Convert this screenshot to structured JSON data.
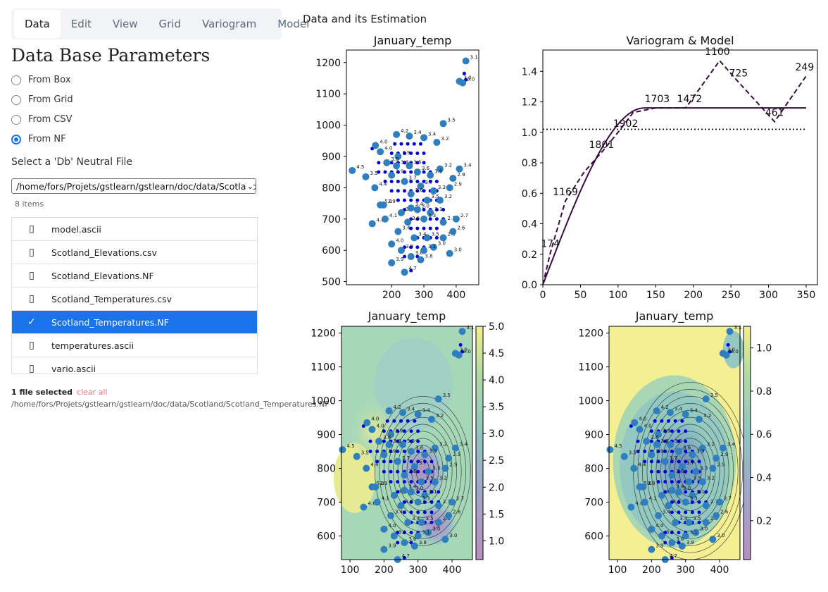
{
  "tabs": [
    "Data",
    "Edit",
    "View",
    "Grid",
    "Variogram",
    "Model"
  ],
  "active_tab": "Data",
  "section_title": "Data Base Parameters",
  "radios": [
    {
      "label": "From Box",
      "checked": false
    },
    {
      "label": "From Grid",
      "checked": false
    },
    {
      "label": "From CSV",
      "checked": false
    },
    {
      "label": "From NF",
      "checked": true
    }
  ],
  "nf_label": "Select a 'Db' Neutral File",
  "select_value": "/home/fors/Projets/gstlearn/gstlearn/doc/data/Scotland",
  "item_count": "8 items",
  "files": [
    {
      "name": "model.ascii",
      "icon": "file-icon",
      "selected": false
    },
    {
      "name": "Scotland_Elevations.csv",
      "icon": "spreadsheet-icon",
      "selected": false
    },
    {
      "name": "Scotland_Elevations.NF",
      "icon": "file-icon",
      "selected": false
    },
    {
      "name": "Scotland_Temperatures.csv",
      "icon": "spreadsheet-icon",
      "selected": false
    },
    {
      "name": "Scotland_Temperatures.NF",
      "icon": "check-icon",
      "selected": true
    },
    {
      "name": "temperatures.ascii",
      "icon": "file-icon",
      "selected": false
    },
    {
      "name": "vario.ascii",
      "icon": "file-icon",
      "selected": false
    }
  ],
  "selection_text": "1 file selected",
  "clear_label": "clear all",
  "selected_path": "/home/fors/Projets/gstlearn/gstlearn/doc/data/Scotland/Scotland_Temperatures.NF",
  "figure_title": "Data and its Estimation",
  "accent": "#1a73e8",
  "chart_data": [
    {
      "type": "scatter",
      "title": "January_temp",
      "xticks": [
        200,
        300,
        400
      ],
      "yticks": [
        500,
        600,
        700,
        800,
        900,
        1000,
        1100,
        1200
      ],
      "xlim": [
        60,
        470
      ],
      "ylim": [
        490,
        1240
      ],
      "points": [
        [
          78,
          855,
          4.5
        ],
        [
          120,
          835,
          3.5
        ],
        [
          148,
          800,
          4.4
        ],
        [
          165,
          745,
          5.0
        ],
        [
          140,
          685,
          4.6
        ],
        [
          175,
          745,
          3.9
        ],
        [
          165,
          915,
          4.0
        ],
        [
          150,
          935,
          4.0
        ],
        [
          220,
          900,
          3.9
        ],
        [
          215,
          970,
          4.2
        ],
        [
          255,
          965,
          3.4
        ],
        [
          300,
          960,
          3.4
        ],
        [
          340,
          945,
          3.2
        ],
        [
          360,
          1005,
          3.5
        ],
        [
          255,
          870,
          3.5
        ],
        [
          200,
          840,
          3.9
        ],
        [
          240,
          820,
          3.7
        ],
        [
          290,
          805,
          3.7
        ],
        [
          260,
          780,
          3.6
        ],
        [
          310,
          760,
          3.5
        ],
        [
          350,
          760,
          3.2
        ],
        [
          280,
          730,
          3.0
        ],
        [
          320,
          720,
          3.1
        ],
        [
          360,
          690,
          2.7
        ],
        [
          300,
          700,
          3.3
        ],
        [
          250,
          690,
          3.6
        ],
        [
          220,
          660,
          3.4
        ],
        [
          200,
          620,
          4.0
        ],
        [
          230,
          600,
          3.9
        ],
        [
          260,
          580,
          3.6
        ],
        [
          290,
          570,
          3.8
        ],
        [
          330,
          610,
          3.0
        ],
        [
          360,
          640,
          2.8
        ],
        [
          390,
          660,
          2.6
        ],
        [
          400,
          700,
          2.7
        ],
        [
          380,
          590,
          3.0
        ],
        [
          240,
          530,
          4.7
        ],
        [
          310,
          640,
          3.5
        ],
        [
          270,
          640,
          3.4
        ],
        [
          180,
          700,
          4.1
        ],
        [
          380,
          800,
          2.9
        ],
        [
          410,
          860,
          3.4
        ],
        [
          390,
          830,
          2.9
        ],
        [
          350,
          860,
          3.2
        ],
        [
          320,
          840,
          3.9
        ],
        [
          280,
          850,
          3.6
        ],
        [
          230,
          720,
          3.7
        ],
        [
          300,
          600,
          3.1
        ],
        [
          200,
          560,
          3.9
        ],
        [
          430,
          1205,
          3.1
        ],
        [
          420,
          1135,
          3.0
        ],
        [
          410,
          1140,
          3.0
        ],
        [
          215,
          870,
          3.8
        ],
        [
          185,
          880,
          3.6
        ],
        [
          330,
          790,
          3.3
        ],
        [
          260,
          735,
          3.4
        ]
      ],
      "dots": [
        [
          160,
          880
        ],
        [
          180,
          880
        ],
        [
          200,
          880
        ],
        [
          220,
          880
        ],
        [
          240,
          880
        ],
        [
          260,
          880
        ],
        [
          280,
          880
        ],
        [
          300,
          880
        ],
        [
          160,
          850
        ],
        [
          180,
          850
        ],
        [
          200,
          850
        ],
        [
          220,
          850
        ],
        [
          240,
          850
        ],
        [
          260,
          850
        ],
        [
          280,
          850
        ],
        [
          300,
          850
        ],
        [
          320,
          850
        ],
        [
          180,
          820
        ],
        [
          200,
          820
        ],
        [
          220,
          820
        ],
        [
          240,
          820
        ],
        [
          260,
          820
        ],
        [
          280,
          820
        ],
        [
          300,
          820
        ],
        [
          320,
          820
        ],
        [
          340,
          820
        ],
        [
          200,
          790
        ],
        [
          220,
          790
        ],
        [
          240,
          790
        ],
        [
          260,
          790
        ],
        [
          280,
          790
        ],
        [
          300,
          790
        ],
        [
          320,
          790
        ],
        [
          340,
          790
        ],
        [
          220,
          760
        ],
        [
          240,
          760
        ],
        [
          260,
          760
        ],
        [
          280,
          760
        ],
        [
          300,
          760
        ],
        [
          320,
          760
        ],
        [
          340,
          760
        ],
        [
          240,
          730
        ],
        [
          260,
          730
        ],
        [
          280,
          730
        ],
        [
          300,
          730
        ],
        [
          320,
          730
        ],
        [
          340,
          730
        ],
        [
          360,
          730
        ],
        [
          260,
          700
        ],
        [
          280,
          700
        ],
        [
          300,
          700
        ],
        [
          320,
          700
        ],
        [
          340,
          700
        ],
        [
          360,
          700
        ],
        [
          260,
          670
        ],
        [
          280,
          670
        ],
        [
          300,
          670
        ],
        [
          320,
          670
        ],
        [
          340,
          670
        ],
        [
          280,
          640
        ],
        [
          300,
          640
        ],
        [
          320,
          640
        ],
        [
          340,
          640
        ],
        [
          240,
          610
        ],
        [
          260,
          610
        ],
        [
          280,
          610
        ],
        [
          300,
          610
        ],
        [
          240,
          580
        ],
        [
          260,
          580
        ],
        [
          280,
          580
        ],
        [
          200,
          910
        ],
        [
          220,
          910
        ],
        [
          240,
          910
        ],
        [
          260,
          910
        ],
        [
          280,
          910
        ],
        [
          300,
          910
        ],
        [
          210,
          940
        ],
        [
          230,
          940
        ],
        [
          250,
          940
        ],
        [
          270,
          940
        ],
        [
          290,
          940
        ],
        [
          140,
          925
        ],
        [
          260,
          535
        ],
        [
          425,
          1165
        ],
        [
          430,
          1145
        ]
      ]
    },
    {
      "type": "line",
      "title": "Variogram & Model",
      "xticks": [
        0,
        50,
        100,
        150,
        200,
        250,
        300,
        350
      ],
      "yticks": [
        0.0,
        0.2,
        0.4,
        0.6,
        0.8,
        1.0,
        1.2,
        1.4
      ],
      "xlim": [
        0,
        365
      ],
      "ylim": [
        0,
        1.54
      ],
      "experimental": [
        [
          0,
          0
        ],
        [
          10,
          0.21
        ],
        [
          30,
          0.55
        ],
        [
          55,
          0.74
        ],
        [
          80,
          0.88
        ],
        [
          100,
          1.0
        ],
        [
          120,
          1.13
        ],
        [
          150,
          1.16
        ],
        [
          190,
          1.16
        ],
        [
          235,
          1.47
        ],
        [
          260,
          1.33
        ],
        [
          308,
          1.07
        ],
        [
          350,
          1.37
        ]
      ],
      "exp_labels": [
        {
          "x": 10,
          "y": 0.21,
          "t": "174"
        },
        {
          "x": 30,
          "y": 0.55,
          "t": "1169"
        },
        {
          "x": 78,
          "y": 0.86,
          "t": "1801"
        },
        {
          "x": 110,
          "y": 1.0,
          "t": "1902"
        },
        {
          "x": 152,
          "y": 1.16,
          "t": "1703"
        },
        {
          "x": 195,
          "y": 1.16,
          "t": "1472"
        },
        {
          "x": 232,
          "y": 1.47,
          "t": "1100"
        },
        {
          "x": 260,
          "y": 1.33,
          "t": "725"
        },
        {
          "x": 308,
          "y": 1.07,
          "t": "461"
        },
        {
          "x": 348,
          "y": 1.37,
          "t": "249"
        }
      ],
      "sill": 1.02,
      "model_range": 135,
      "model_sill": 1.16
    },
    {
      "type": "heatmap",
      "title": "January_temp",
      "colorbar": [
        1.0,
        1.5,
        2.0,
        2.5,
        3.0,
        3.5,
        4.0,
        4.5,
        5.0
      ],
      "xticks": [
        100,
        200,
        300,
        400
      ],
      "yticks": [
        600,
        700,
        800,
        900,
        1000,
        1100,
        1200
      ]
    },
    {
      "type": "heatmap",
      "title": "January_temp",
      "colorbar": [
        0.2,
        0.4,
        0.6,
        0.8,
        1.0
      ],
      "xticks": [
        100,
        200,
        300,
        400
      ],
      "yticks": [
        600,
        700,
        800,
        900,
        1000,
        1100,
        1200
      ]
    }
  ]
}
